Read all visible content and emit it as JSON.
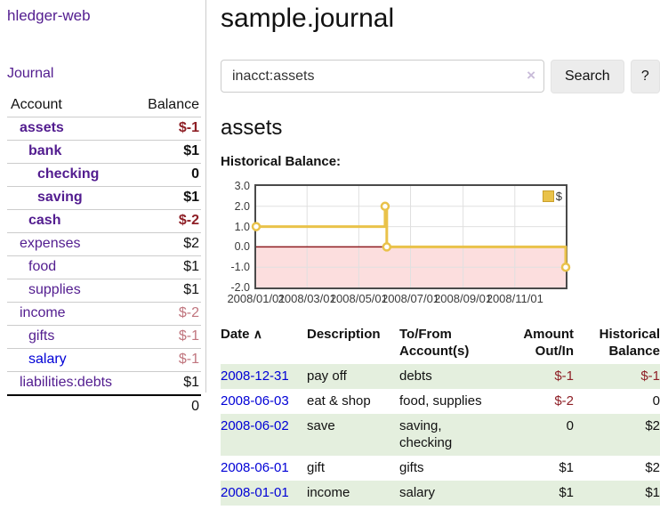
{
  "app_title": "hledger-web",
  "sidebar": {
    "journal_link": "Journal",
    "accounts_table": {
      "account_header": "Account",
      "balance_header": "Balance",
      "rows": [
        {
          "name": "assets",
          "level": 1,
          "bold": true,
          "name_color": "purple",
          "balance": "$-1",
          "balance_class": "neg"
        },
        {
          "name": "bank",
          "level": 2,
          "bold": true,
          "name_color": "purple",
          "balance": "$1",
          "balance_class": ""
        },
        {
          "name": "checking",
          "level": 3,
          "bold": true,
          "name_color": "purple",
          "balance": "0",
          "balance_class": ""
        },
        {
          "name": "saving",
          "level": 3,
          "bold": true,
          "name_color": "purple",
          "balance": "$1",
          "balance_class": ""
        },
        {
          "name": "cash",
          "level": 2,
          "bold": true,
          "name_color": "purple",
          "balance": "$-2",
          "balance_class": "neg"
        },
        {
          "name": "expenses",
          "level": 1,
          "bold": false,
          "name_color": "purple",
          "balance": "$2",
          "balance_class": ""
        },
        {
          "name": "food",
          "level": 2,
          "bold": false,
          "name_color": "purple",
          "balance": "$1",
          "balance_class": ""
        },
        {
          "name": "supplies",
          "level": 2,
          "bold": false,
          "name_color": "purple",
          "balance": "$1",
          "balance_class": ""
        },
        {
          "name": "income",
          "level": 1,
          "bold": false,
          "name_color": "purple",
          "balance": "$-2",
          "balance_class": "rose"
        },
        {
          "name": "gifts",
          "level": 2,
          "bold": false,
          "name_color": "purple",
          "balance": "$-1",
          "balance_class": "rose"
        },
        {
          "name": "salary",
          "level": 2,
          "bold": false,
          "name_color": "blue",
          "balance": "$-1",
          "balance_class": "rose"
        },
        {
          "name": "liabilities:debts",
          "level": 1,
          "bold": false,
          "name_color": "purple",
          "balance": "$1",
          "balance_class": ""
        }
      ],
      "total": "0"
    }
  },
  "main": {
    "title": "sample.journal",
    "search": {
      "value": "inacct:assets",
      "clear_label": "×",
      "search_button": "Search",
      "help_button": "?"
    },
    "account_heading": "assets",
    "section_label": "Historical Balance:"
  },
  "chart_data": {
    "type": "line",
    "title": "Historical Balance:",
    "legend": [
      {
        "label": "$",
        "color": "#e9c24a",
        "position": "top-right"
      }
    ],
    "x_range": [
      "2008-01-01",
      "2008-12-31"
    ],
    "ylim": [
      -2,
      3
    ],
    "y_ticks": [
      "3.0",
      "2.0",
      "1.0",
      "0.0",
      "-1.0",
      "-2.0"
    ],
    "x_tick_labels": [
      "2008/01/01",
      "2008/03/01",
      "2008/05/01",
      "2008/07/01",
      "2008/09/01",
      "2008/11/01"
    ],
    "series": [
      {
        "name": "$",
        "step": true,
        "points": [
          {
            "x": "2008-01-01",
            "y": 1
          },
          {
            "x": "2008-06-01",
            "y": 2
          },
          {
            "x": "2008-06-03",
            "y": 0
          },
          {
            "x": "2008-12-31",
            "y": -1
          }
        ]
      }
    ],
    "grid": true,
    "styles": {
      "line_color": "#e9c24a",
      "marker_fill": "#ffffff",
      "negative_fill": "#fcdede",
      "zero_line_color": "#8e1b20",
      "grid_color": "#e0e0e0",
      "border_color": "#4a4a4a"
    }
  },
  "transactions": {
    "headers": {
      "date": "Date",
      "sort_icon": "∧",
      "description": "Description",
      "accounts": "To/From Account(s)",
      "amount": "Amount Out/In",
      "balance": "Historical Balance"
    },
    "rows": [
      {
        "date": "2008-12-31",
        "description": "pay off",
        "accounts": "debts",
        "amount": "$-1",
        "amount_negative": true,
        "balance": "$-1",
        "balance_negative": true
      },
      {
        "date": "2008-06-03",
        "description": "eat & shop",
        "accounts": "food, supplies",
        "amount": "$-2",
        "amount_negative": true,
        "balance": "0",
        "balance_negative": false
      },
      {
        "date": "2008-06-02",
        "description": "save",
        "accounts": "saving, checking",
        "amount": "0",
        "amount_negative": false,
        "balance": "$2",
        "balance_negative": false
      },
      {
        "date": "2008-06-01",
        "description": "gift",
        "accounts": "gifts",
        "amount": "$1",
        "amount_negative": false,
        "balance": "$2",
        "balance_negative": false
      },
      {
        "date": "2008-01-01",
        "description": "income",
        "accounts": "salary",
        "amount": "$1",
        "amount_negative": false,
        "balance": "$1",
        "balance_negative": false
      }
    ]
  }
}
